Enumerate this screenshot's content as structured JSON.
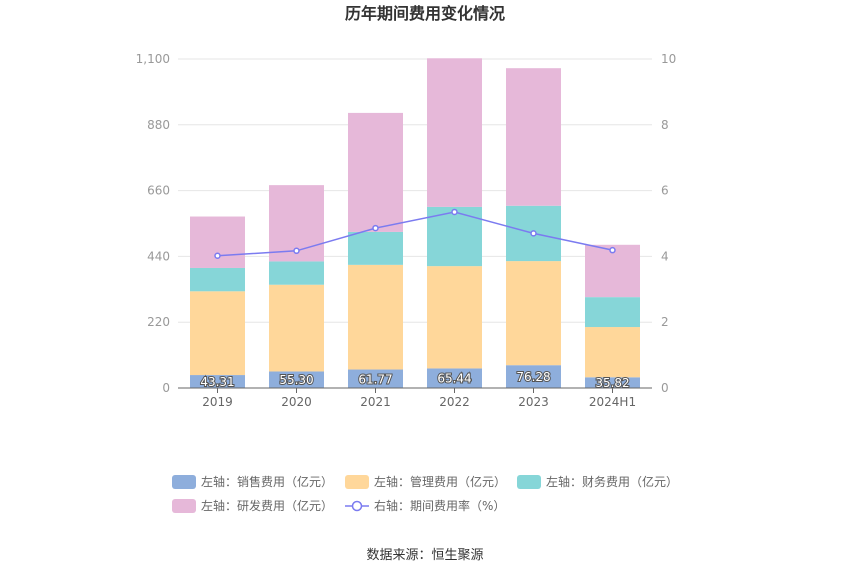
{
  "chart_data": {
    "type": "bar",
    "title": "历年期间费用变化情况",
    "categories": [
      "2019",
      "2020",
      "2021",
      "2022",
      "2023",
      "2024H1"
    ],
    "stacked": true,
    "series": [
      {
        "name": "左轴：销售费用（亿元）",
        "axis": "left",
        "color": "#8EAEDC",
        "values": [
          43.31,
          55.3,
          61.77,
          65.44,
          76.28,
          35.82
        ],
        "labels": [
          "43.31",
          "55.30",
          "61.77",
          "65.44",
          "76.28",
          "35.82"
        ]
      },
      {
        "name": "左轴：管理费用（亿元）",
        "axis": "left",
        "color": "#FFD79A",
        "values": [
          280,
          290,
          350,
          342,
          348,
          168
        ]
      },
      {
        "name": "左轴：财务费用（亿元）",
        "axis": "left",
        "color": "#86D6D8",
        "values": [
          78,
          78,
          110,
          198,
          185,
          100
        ]
      },
      {
        "name": "左轴：研发费用（亿元）",
        "axis": "left",
        "color": "#E6B8D9",
        "values": [
          172,
          255,
          398,
          497,
          460,
          175
        ]
      },
      {
        "name": "右轴：期间费用率（%）",
        "axis": "right",
        "type": "line",
        "color": "#7B7BF0",
        "values": [
          4.02,
          4.17,
          4.86,
          5.35,
          4.7,
          4.19
        ]
      }
    ],
    "left_axis": {
      "min": 0,
      "max": 1100,
      "ticks": [
        0,
        220,
        440,
        660,
        880,
        1100
      ],
      "tick_labels": [
        "0",
        "220",
        "440",
        "660",
        "880",
        "1,100"
      ]
    },
    "right_axis": {
      "min": 0,
      "max": 10,
      "ticks": [
        0,
        2,
        4,
        6,
        8,
        10
      ],
      "tick_labels": [
        "0",
        "2",
        "4",
        "6",
        "8",
        "10"
      ]
    },
    "grid": true,
    "legend_position": "bottom",
    "source": "数据来源：恒生聚源"
  }
}
